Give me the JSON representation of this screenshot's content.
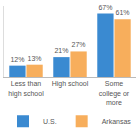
{
  "chart_data": {
    "type": "bar",
    "categories": [
      "Less than high school",
      "High school",
      "Some college or more"
    ],
    "series": [
      {
        "name": "U.S.",
        "color": "#3a8ad1",
        "values": [
          12,
          21,
          67
        ],
        "value_labels": [
          "12%",
          "21%",
          "67%"
        ]
      },
      {
        "name": "Arkansas",
        "color": "#f7ae5c",
        "values": [
          13,
          27,
          61
        ],
        "value_labels": [
          "13%",
          "27%",
          "61%"
        ]
      }
    ],
    "ylim": [
      0,
      75
    ],
    "yticks": [],
    "grid": false,
    "legend": "bottom",
    "data_labels": true,
    "tick_labels": "x"
  }
}
